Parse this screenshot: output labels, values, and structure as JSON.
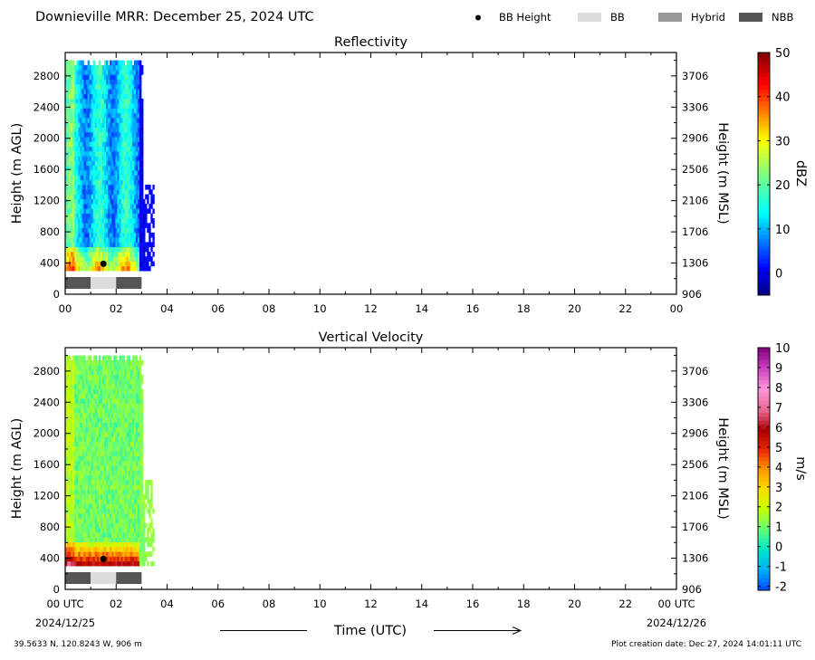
{
  "header": {
    "title": "Downieville MRR:  December 25, 2024 UTC",
    "legend": [
      {
        "label": "BB Height",
        "kind": "dot",
        "color": "#000000"
      },
      {
        "label": "BB",
        "kind": "swatch",
        "color": "#dcdcdc"
      },
      {
        "label": "Hybrid",
        "kind": "swatch",
        "color": "#999999"
      },
      {
        "label": "NBB",
        "kind": "swatch",
        "color": "#555555"
      }
    ]
  },
  "footer": {
    "location": "39.5633 N, 120.8243 W, 906 m",
    "creation": "Plot creation date: Dec 27, 2024 14:01:11 UTC",
    "xlabel": "Time (UTC)",
    "date_left": "2024/12/25",
    "date_right": "2024/12/26"
  },
  "chart_data": [
    {
      "type": "heatmap",
      "title": "Reflectivity",
      "ylabel": "Height (m AGL)",
      "ylabel_right": "Height (m MSL)",
      "colorbar_label": "dBZ",
      "x_range": [
        0,
        24
      ],
      "ylim": [
        0,
        3100
      ],
      "xticks": [
        "00",
        "02",
        "04",
        "06",
        "08",
        "10",
        "12",
        "14",
        "16",
        "18",
        "20",
        "22",
        "00"
      ],
      "yticks": [
        0,
        400,
        800,
        1200,
        1600,
        2000,
        2400,
        2800
      ],
      "yticks_right": [
        "906",
        "1306",
        "1706",
        "2106",
        "2506",
        "2906",
        "3306",
        "3706"
      ],
      "colorbar": {
        "min": -5,
        "max": 50,
        "ticks": [
          "0",
          "10",
          "20",
          "30",
          "40",
          "50"
        ],
        "tick_values": [
          0,
          10,
          20,
          30,
          40,
          50
        ],
        "scale": "jet"
      },
      "data_extent": {
        "time_start": 0,
        "time_end": 3.5,
        "height_min": 300,
        "height_max": 3000
      },
      "bb_height_marker": {
        "time": 1.5,
        "height": 390
      },
      "bb_class_bar": [
        {
          "start": 0.0,
          "end": 1.0,
          "class": "NBB"
        },
        {
          "start": 1.0,
          "end": 2.0,
          "class": "BB"
        },
        {
          "start": 2.0,
          "end": 3.0,
          "class": "NBB"
        }
      ]
    },
    {
      "type": "heatmap",
      "title": "Vertical Velocity",
      "ylabel": "Height (m AGL)",
      "ylabel_right": "Height (m MSL)",
      "colorbar_label": "m/s",
      "x_range": [
        0,
        24
      ],
      "ylim": [
        0,
        3100
      ],
      "xticks": [
        "00 UTC",
        "02",
        "04",
        "06",
        "08",
        "10",
        "12",
        "14",
        "16",
        "18",
        "20",
        "22",
        "00 UTC"
      ],
      "yticks": [
        0,
        400,
        800,
        1200,
        1600,
        2000,
        2400,
        2800
      ],
      "yticks_right": [
        "906",
        "1306",
        "1706",
        "2106",
        "2506",
        "2906",
        "3306",
        "3706"
      ],
      "colorbar": {
        "min": -2.2,
        "max": 10,
        "ticks": [
          "-2",
          "-1",
          "0",
          "1",
          "2",
          "3",
          "4",
          "5",
          "6",
          "7",
          "8",
          "9",
          "10"
        ],
        "tick_values": [
          -2,
          -1,
          0,
          1,
          2,
          3,
          4,
          5,
          6,
          7,
          8,
          9,
          10
        ],
        "scale": "velocity"
      },
      "data_extent": {
        "time_start": 0,
        "time_end": 3.5,
        "height_min": 300,
        "height_max": 3000
      },
      "bb_height_marker": {
        "time": 1.5,
        "height": 390
      },
      "bb_class_bar": [
        {
          "start": 0.0,
          "end": 1.0,
          "class": "NBB"
        },
        {
          "start": 1.0,
          "end": 2.0,
          "class": "BB"
        },
        {
          "start": 2.0,
          "end": 3.0,
          "class": "NBB"
        }
      ]
    }
  ]
}
